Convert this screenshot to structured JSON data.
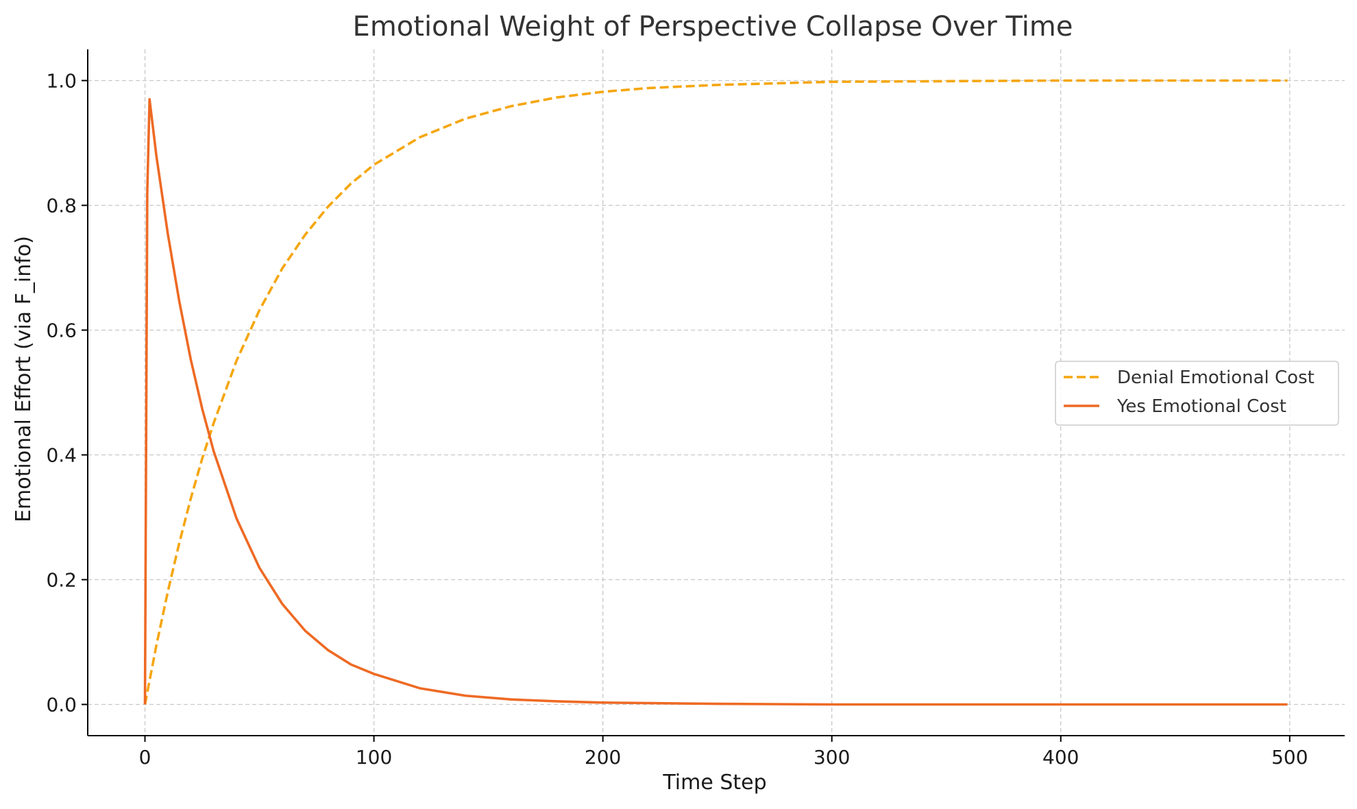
{
  "chart_data": {
    "type": "line",
    "title": "Emotional Weight of Perspective Collapse Over Time",
    "xlabel": "Time Step",
    "ylabel": "Emotional Effort (via F_info)",
    "xlim": [
      -25,
      524
    ],
    "ylim": [
      -0.05,
      1.05
    ],
    "xticks": [
      0,
      100,
      200,
      300,
      400,
      500
    ],
    "yticks": [
      0.0,
      0.2,
      0.4,
      0.6,
      0.8,
      1.0
    ],
    "xtick_labels": [
      "0",
      "100",
      "200",
      "300",
      "400",
      "500"
    ],
    "ytick_labels": [
      "0.0",
      "0.2",
      "0.4",
      "0.6",
      "0.8",
      "1.0"
    ],
    "grid": true,
    "legend_position": "center-right",
    "series": [
      {
        "name": "Denial Emotional Cost",
        "color": "#F5A60F",
        "style": "dashed",
        "x": [
          0,
          5,
          10,
          15,
          20,
          25,
          30,
          40,
          50,
          60,
          70,
          80,
          90,
          100,
          120,
          140,
          160,
          180,
          200,
          220,
          250,
          300,
          350,
          400,
          450,
          499
        ],
        "y": [
          0.0,
          0.095,
          0.181,
          0.259,
          0.33,
          0.394,
          0.451,
          0.551,
          0.632,
          0.699,
          0.753,
          0.798,
          0.835,
          0.865,
          0.909,
          0.939,
          0.959,
          0.973,
          0.982,
          0.988,
          0.993,
          0.998,
          0.999,
          1.0,
          1.0,
          1.0
        ]
      },
      {
        "name": "Yes Emotional Cost",
        "color": "#EE6A24",
        "style": "solid",
        "x": [
          0,
          1,
          2,
          5,
          10,
          15,
          20,
          25,
          30,
          40,
          50,
          60,
          70,
          80,
          90,
          100,
          120,
          140,
          160,
          180,
          200,
          250,
          300,
          350,
          400,
          450,
          499
        ],
        "y": [
          0.0,
          0.82,
          0.97,
          0.879,
          0.754,
          0.646,
          0.553,
          0.474,
          0.406,
          0.298,
          0.219,
          0.161,
          0.118,
          0.087,
          0.064,
          0.049,
          0.026,
          0.014,
          0.008,
          0.005,
          0.003,
          0.001,
          0.0,
          0.0,
          0.0,
          0.0,
          0.0
        ]
      }
    ]
  }
}
